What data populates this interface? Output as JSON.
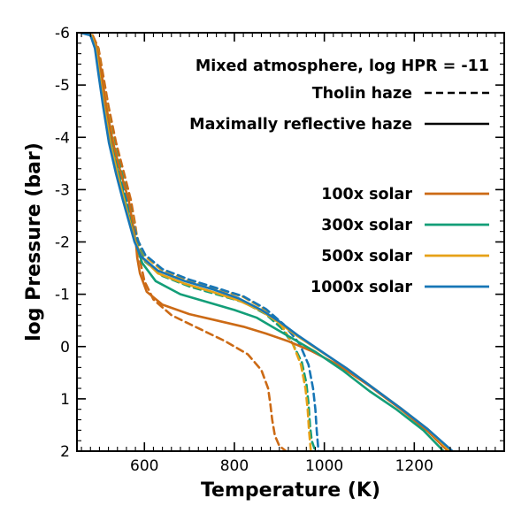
{
  "chart_data": {
    "type": "line",
    "title": "",
    "xlabel": "Temperature (K)",
    "ylabel": "log Pressure (bar)",
    "xlim": [
      450,
      1400
    ],
    "ylim": [
      2,
      -6
    ],
    "x_ticks": [
      600,
      800,
      1000,
      1200
    ],
    "x_tick_labels": [
      "600",
      "800",
      "1000",
      "1200"
    ],
    "y_ticks": [
      -6,
      -5,
      -4,
      -3,
      -2,
      -1,
      0,
      1,
      2
    ],
    "y_tick_labels": [
      "-6",
      "-5",
      "-4",
      "-3",
      "-2",
      "-1",
      "0",
      "1",
      "2"
    ],
    "grid": false,
    "legend": {
      "placement": "top-right",
      "header": "Mixed atmosphere, log HPR = -11",
      "styles": [
        {
          "label": "Tholin haze",
          "dash": "dashed"
        },
        {
          "label": "Maximally reflective haze",
          "dash": "solid"
        }
      ],
      "colors": [
        {
          "label": "100x solar",
          "color": "#cc6a15"
        },
        {
          "label": "300x solar",
          "color": "#139e78"
        },
        {
          "label": "500x solar",
          "color": "#e6a117"
        },
        {
          "label": "1000x solar",
          "color": "#1776b6"
        }
      ]
    },
    "series": [
      {
        "metallicity": "100x solar",
        "haze": "Maximally reflective haze",
        "color": "#cc6a15",
        "dash": "solid",
        "x": [
          463,
          485,
          495,
          505,
          515,
          530,
          548,
          565,
          577,
          582,
          584,
          590,
          605,
          640,
          700,
          760,
          820,
          870,
          920,
          970,
          1030,
          1100,
          1170,
          1230,
          1275
        ],
        "y": [
          -6,
          -5.95,
          -5.7,
          -5.2,
          -4.6,
          -3.9,
          -3.3,
          -2.8,
          -2.2,
          -1.9,
          -1.7,
          -1.4,
          -1.05,
          -0.8,
          -0.62,
          -0.5,
          -0.38,
          -0.25,
          -0.1,
          0.08,
          0.35,
          0.75,
          1.2,
          1.62,
          2
        ]
      },
      {
        "metallicity": "100x solar",
        "haze": "Tholin haze",
        "color": "#cc6a15",
        "dash": "dashed",
        "x": [
          463,
          485,
          498,
          508,
          520,
          537,
          555,
          570,
          580,
          585,
          590,
          600,
          620,
          660,
          720,
          780,
          830,
          860,
          875,
          880,
          884,
          890,
          900,
          915
        ],
        "y": [
          -6,
          -5.95,
          -5.7,
          -5.2,
          -4.6,
          -3.9,
          -3.3,
          -2.8,
          -2.3,
          -2.0,
          -1.65,
          -1.25,
          -0.9,
          -0.6,
          -0.35,
          -0.1,
          0.15,
          0.45,
          0.8,
          1.1,
          1.4,
          1.7,
          1.9,
          2
        ]
      },
      {
        "metallicity": "300x solar",
        "haze": "Maximally reflective haze",
        "color": "#139e78",
        "dash": "solid",
        "x": [
          460,
          482,
          492,
          500,
          510,
          525,
          542,
          557,
          570,
          582,
          595,
          625,
          680,
          740,
          800,
          850,
          890,
          930,
          980,
          1040,
          1100,
          1160,
          1220,
          1265
        ],
        "y": [
          -6,
          -5.95,
          -5.7,
          -5.2,
          -4.6,
          -3.9,
          -3.3,
          -2.8,
          -2.35,
          -1.95,
          -1.6,
          -1.25,
          -1.0,
          -0.85,
          -0.7,
          -0.55,
          -0.35,
          -0.15,
          0.1,
          0.45,
          0.85,
          1.2,
          1.6,
          2
        ]
      },
      {
        "metallicity": "300x solar",
        "haze": "Tholin haze",
        "color": "#139e78",
        "dash": "dashed",
        "x": [
          462,
          484,
          496,
          505,
          516,
          532,
          550,
          565,
          576,
          588,
          602,
          640,
          700,
          760,
          820,
          870,
          905,
          930,
          950,
          960,
          965,
          968,
          972,
          980
        ],
        "y": [
          -6,
          -5.95,
          -5.7,
          -5.2,
          -4.6,
          -3.9,
          -3.3,
          -2.8,
          -2.35,
          -1.95,
          -1.62,
          -1.35,
          -1.15,
          -1.0,
          -0.85,
          -0.62,
          -0.35,
          -0.05,
          0.3,
          0.7,
          1.1,
          1.5,
          1.8,
          2
        ]
      },
      {
        "metallicity": "500x solar",
        "haze": "Maximally reflective haze",
        "color": "#e6a117",
        "dash": "solid",
        "x": [
          460,
          482,
          492,
          500,
          510,
          524,
          540,
          555,
          567,
          580,
          595,
          630,
          690,
          750,
          810,
          860,
          900,
          940,
          990,
          1050,
          1110,
          1170,
          1230,
          1280
        ],
        "y": [
          -6,
          -5.95,
          -5.7,
          -5.2,
          -4.6,
          -3.9,
          -3.3,
          -2.8,
          -2.4,
          -2.0,
          -1.7,
          -1.4,
          -1.2,
          -1.05,
          -0.88,
          -0.68,
          -0.45,
          -0.2,
          0.08,
          0.42,
          0.8,
          1.18,
          1.58,
          2
        ]
      },
      {
        "metallicity": "500x solar",
        "haze": "Tholin haze",
        "color": "#e6a117",
        "dash": "dashed",
        "x": [
          462,
          484,
          496,
          505,
          516,
          531,
          548,
          563,
          575,
          587,
          602,
          640,
          700,
          760,
          820,
          870,
          905,
          930,
          948,
          958,
          963,
          966,
          970
        ],
        "y": [
          -6,
          -5.95,
          -5.7,
          -5.2,
          -4.6,
          -3.9,
          -3.3,
          -2.8,
          -2.4,
          -2.0,
          -1.72,
          -1.45,
          -1.25,
          -1.1,
          -0.95,
          -0.7,
          -0.4,
          -0.05,
          0.35,
          0.8,
          1.2,
          1.6,
          2
        ]
      },
      {
        "metallicity": "1000x solar",
        "haze": "Maximally reflective haze",
        "color": "#1776b6",
        "dash": "solid",
        "x": [
          458,
          480,
          490,
          498,
          508,
          521,
          537,
          552,
          565,
          578,
          593,
          630,
          690,
          750,
          810,
          860,
          900,
          940,
          990,
          1050,
          1110,
          1170,
          1230,
          1285
        ],
        "y": [
          -6,
          -5.95,
          -5.7,
          -5.2,
          -4.6,
          -3.9,
          -3.3,
          -2.8,
          -2.4,
          -2.0,
          -1.72,
          -1.45,
          -1.25,
          -1.1,
          -0.92,
          -0.7,
          -0.48,
          -0.22,
          0.07,
          0.42,
          0.8,
          1.18,
          1.58,
          2
        ]
      },
      {
        "metallicity": "1000x solar",
        "haze": "Tholin haze",
        "color": "#1776b6",
        "dash": "dashed",
        "x": [
          460,
          482,
          494,
          503,
          514,
          529,
          546,
          561,
          573,
          586,
          602,
          640,
          700,
          760,
          820,
          870,
          910,
          945,
          965,
          975,
          980,
          983,
          987
        ],
        "y": [
          -6,
          -5.95,
          -5.7,
          -5.2,
          -4.6,
          -3.9,
          -3.3,
          -2.8,
          -2.42,
          -2.02,
          -1.75,
          -1.48,
          -1.28,
          -1.12,
          -0.96,
          -0.72,
          -0.42,
          -0.05,
          0.35,
          0.8,
          1.2,
          1.6,
          2
        ]
      }
    ]
  }
}
